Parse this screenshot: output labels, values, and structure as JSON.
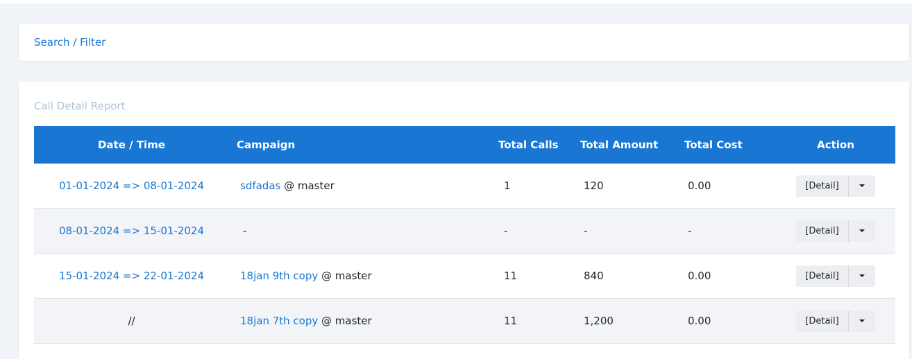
{
  "search": {
    "label": "Search / Filter"
  },
  "report": {
    "title": "Call Detail Report",
    "headers": {
      "date_time": "Date / Time",
      "campaign": "Campaign",
      "total_calls": "Total Calls",
      "total_amount": "Total Amount",
      "total_cost": "Total Cost",
      "action": "Action"
    },
    "rows": [
      {
        "date": "01-01-2024 => 08-01-2024",
        "campaign": "sdfadas",
        "campaign_suffix": " @ master",
        "total_calls": "1",
        "total_amount": "120",
        "total_cost": "0.00",
        "action_label": "[Detail]"
      },
      {
        "date": "08-01-2024 => 15-01-2024",
        "campaign": "",
        "campaign_suffix": "-",
        "total_calls": "-",
        "total_amount": "-",
        "total_cost": "-",
        "action_label": "[Detail]"
      },
      {
        "date": "15-01-2024 => 22-01-2024",
        "campaign": "18jan 9th copy",
        "campaign_suffix": " @ master",
        "total_calls": "11",
        "total_amount": "840",
        "total_cost": "0.00",
        "action_label": "[Detail]"
      },
      {
        "date": "//",
        "campaign": "18jan 7th copy",
        "campaign_suffix": " @ master",
        "total_calls": "11",
        "total_amount": "1,200",
        "total_cost": "0.00",
        "action_label": "[Detail]"
      }
    ]
  },
  "colors": {
    "header_bg": "#1976d2",
    "link": "#1976d2",
    "muted_title": "#b3c3d6"
  },
  "icons": {
    "dropdown": "caret-down-icon"
  }
}
